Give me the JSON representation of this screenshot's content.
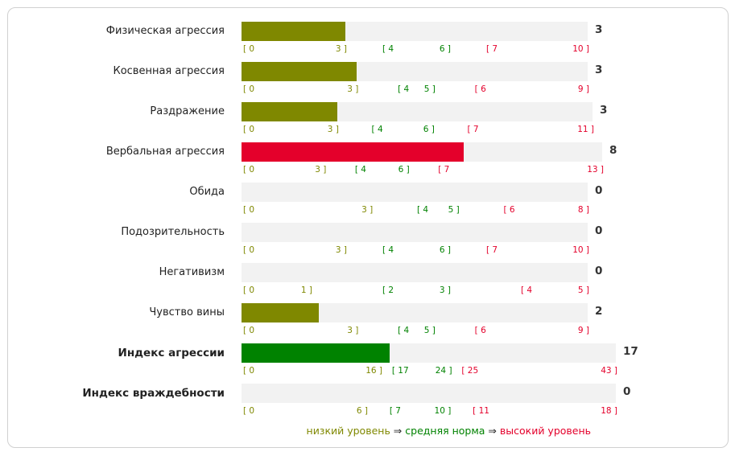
{
  "colors": {
    "low": "#7f8800",
    "mid": "#008200",
    "high": "#e4002b",
    "track": "#f2f2f2"
  },
  "legend": {
    "low": "низкий уровень",
    "arrow1": "⇒",
    "mid": "средняя норма",
    "arrow2": "⇒",
    "high": "высокий уровень"
  },
  "chart_data": {
    "type": "bar",
    "orientation": "horizontal",
    "categories": [
      "Физическая агрессия",
      "Косвенная агрессия",
      "Раздражение",
      "Вербальная агрессия",
      "Обида",
      "Подозрительность",
      "Негативизм",
      "Чувство вины",
      "Индекс агрессии",
      "Индекс враждебности"
    ],
    "items": [
      {
        "label": "Физическая агрессия",
        "bold": false,
        "value": 3,
        "max": 10,
        "level": "low",
        "ticks": {
          "low_start": "[ 0",
          "low_end": "3 ]",
          "mid_start": "[ 4",
          "mid_end": "6 ]",
          "high_start": "[ 7",
          "high_end": "10 ]"
        }
      },
      {
        "label": "Косвенная агрессия",
        "bold": false,
        "value": 3,
        "max": 9,
        "level": "low",
        "ticks": {
          "low_start": "[ 0",
          "low_end": "3 ]",
          "mid_start": "[ 4",
          "mid_end": "5 ]",
          "high_start": "[ 6",
          "high_end": "9 ]"
        }
      },
      {
        "label": "Раздражение",
        "bold": false,
        "value": 3,
        "max": 11,
        "level": "low",
        "ticks": {
          "low_start": "[ 0",
          "low_end": "3 ]",
          "mid_start": "[ 4",
          "mid_end": "6 ]",
          "high_start": "[ 7",
          "high_end": "11 ]"
        }
      },
      {
        "label": "Вербальная агрессия",
        "bold": false,
        "value": 8,
        "max": 13,
        "level": "high",
        "ticks": {
          "low_start": "[ 0",
          "low_end": "3 ]",
          "mid_start": "[ 4",
          "mid_end": "6 ]",
          "high_start": "[ 7",
          "high_end": "13 ]"
        }
      },
      {
        "label": "Обида",
        "bold": false,
        "value": 0,
        "max": 8,
        "level": "low",
        "ticks": {
          "low_start": "[ 0",
          "low_end": "3 ]",
          "mid_start": "[ 4",
          "mid_end": "5 ]",
          "high_start": "[ 6",
          "high_end": "8 ]"
        }
      },
      {
        "label": "Подозрительность",
        "bold": false,
        "value": 0,
        "max": 10,
        "level": "low",
        "ticks": {
          "low_start": "[ 0",
          "low_end": "3 ]",
          "mid_start": "[ 4",
          "mid_end": "6 ]",
          "high_start": "[ 7",
          "high_end": "10 ]"
        }
      },
      {
        "label": "Негативизм",
        "bold": false,
        "value": 0,
        "max": 5,
        "level": "low",
        "ticks": {
          "low_start": "[ 0",
          "low_end": "1 ]",
          "mid_start": "[ 2",
          "mid_end": "3 ]",
          "high_start": "[ 4",
          "high_end": "5 ]"
        }
      },
      {
        "label": "Чувство вины",
        "bold": false,
        "value": 2,
        "max": 9,
        "level": "low",
        "ticks": {
          "low_start": "[ 0",
          "low_end": "3 ]",
          "mid_start": "[ 4",
          "mid_end": "5 ]",
          "high_start": "[ 6",
          "high_end": "9 ]"
        }
      },
      {
        "label": "Индекс агрессии",
        "bold": true,
        "value": 17,
        "max": 43,
        "level": "mid",
        "ticks": {
          "low_start": "[ 0",
          "low_end": "16 ]",
          "mid_start": "[ 17",
          "mid_end": "24 ]",
          "high_start": "[ 25",
          "high_end": "43 ]"
        }
      },
      {
        "label": "Индекс враждебности",
        "bold": true,
        "value": 0,
        "max": 18,
        "level": "low",
        "ticks": {
          "low_start": "[ 0",
          "low_end": "6 ]",
          "mid_start": "[ 7",
          "mid_end": "10 ]",
          "high_start": "[ 11",
          "high_end": "18 ]"
        }
      }
    ]
  }
}
